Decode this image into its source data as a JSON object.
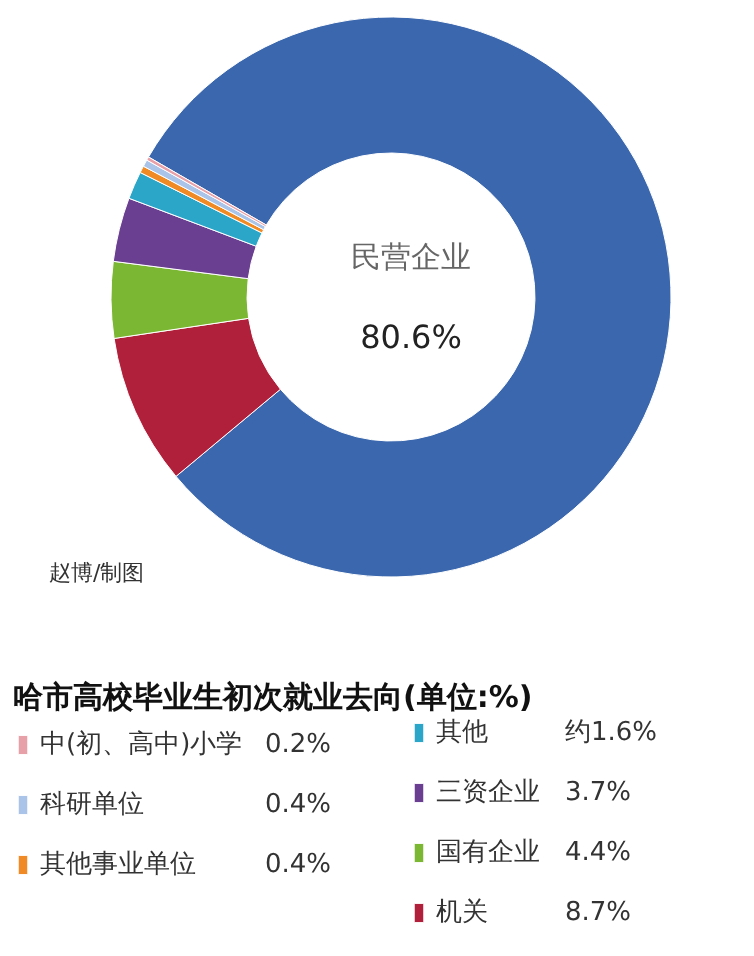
{
  "chart_data": {
    "type": "donut",
    "title": "哈市高校毕业生初次就业去向(单位:%)",
    "categories": [
      "民营企业",
      "机关",
      "国有企业",
      "三资企业",
      "其他",
      "其他事业单位",
      "科研单位",
      "中(初、高中)小学"
    ],
    "values": [
      80.6,
      8.7,
      4.4,
      3.7,
      1.6,
      0.4,
      0.4,
      0.2
    ],
    "colors": [
      "#3a67ae",
      "#b0203a",
      "#7cb733",
      "#6a3e91",
      "#2ba6c8",
      "#f08a24",
      "#a9c4e8",
      "#e8a0a8"
    ],
    "value_labels": [
      "80.6%",
      "8.7%",
      "4.4%",
      "3.7%",
      "约1.6%",
      "0.4%",
      "0.4%",
      "0.2%"
    ],
    "annotations": [
      "赵博/制图"
    ],
    "legend": "bottom"
  }
}
